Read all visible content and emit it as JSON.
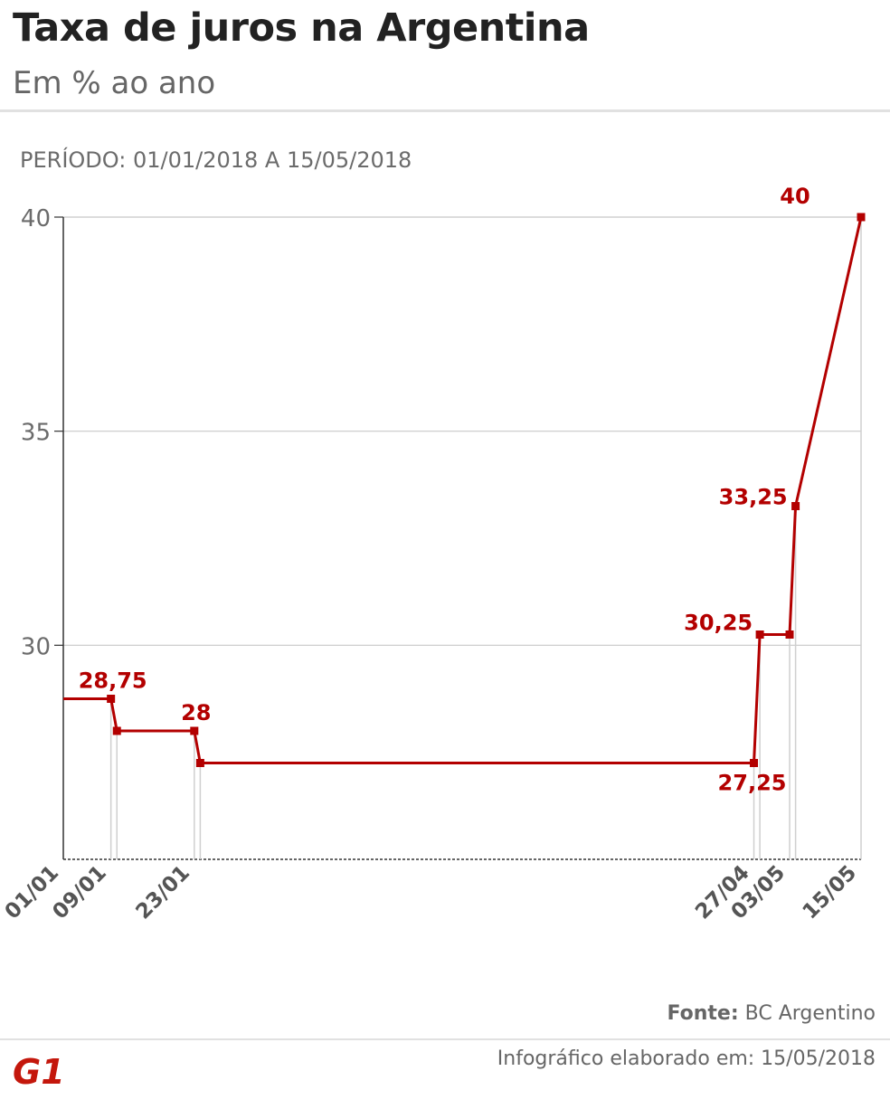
{
  "header": {
    "title": "Taxa de juros na Argentina",
    "subtitle": "Em % ao ano"
  },
  "period_label": "PERÍODO: 01/01/2018 A 15/05/2018",
  "chart_data": {
    "type": "line",
    "step": true,
    "ylim": [
      25,
      40
    ],
    "yticks": [
      30,
      35,
      40
    ],
    "xtick_labels": [
      "01/01",
      "09/01",
      "23/01",
      "27/04",
      "03/05",
      "15/05"
    ],
    "series": [
      {
        "color": "#b30000",
        "x": [
          "01/01",
          "09/01",
          "10/01",
          "23/01",
          "24/01",
          "27/04",
          "28/04",
          "03/05",
          "04/05",
          "15/05"
        ],
        "values": [
          28.75,
          28.75,
          28,
          28,
          27.25,
          27.25,
          30.25,
          30.25,
          33.25,
          40
        ]
      }
    ],
    "data_labels": [
      "28,75",
      "28",
      "27,25",
      "30,25",
      "33,25",
      "40"
    ],
    "grid": true,
    "series_color": "#b30000"
  },
  "footer": {
    "source_label": "Fonte:",
    "source_value": "BC Argentino",
    "credit": "Infográfico elaborado em: 15/05/2018",
    "logo_text": "G1",
    "logo_color": "#c4170c"
  }
}
